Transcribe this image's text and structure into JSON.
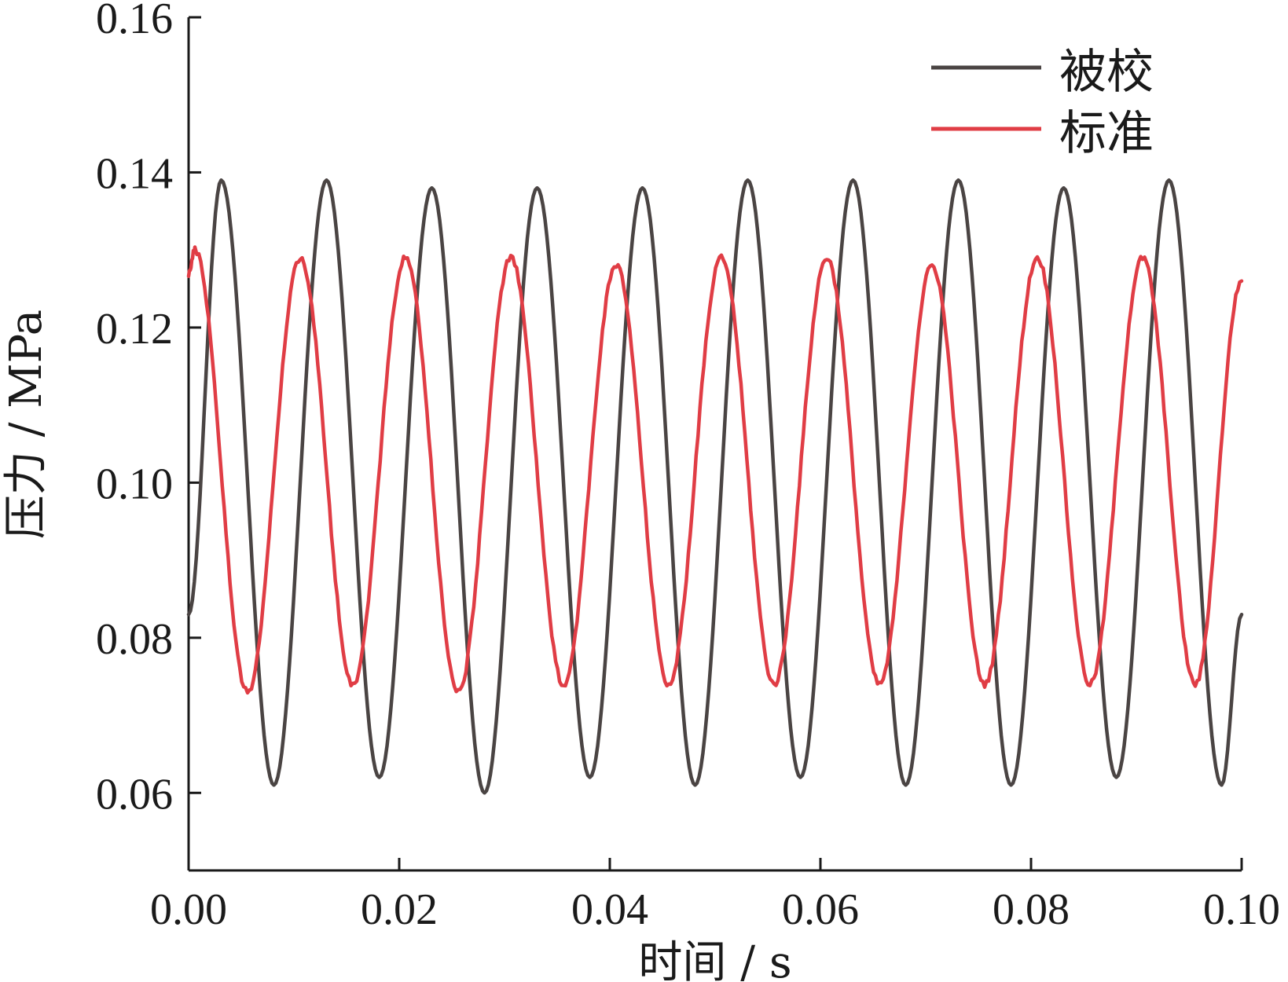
{
  "chart_data": {
    "type": "line",
    "xlabel": "时间 / s",
    "ylabel": "压力 / MPa",
    "xlim": [
      0.0,
      0.1
    ],
    "ylim": [
      0.05,
      0.16
    ],
    "x_ticks": [
      "0.00",
      "0.02",
      "0.04",
      "0.06",
      "0.08",
      "0.10"
    ],
    "x_tick_values": [
      0.0,
      0.02,
      0.04,
      0.06,
      0.08,
      0.1
    ],
    "y_ticks": [
      "0.06",
      "0.08",
      "0.10",
      "0.12",
      "0.14",
      "0.16"
    ],
    "y_tick_values": [
      0.06,
      0.08,
      0.1,
      0.12,
      0.14,
      0.16
    ],
    "grid": false,
    "legend_position": "top-right",
    "series": [
      {
        "name": "被校",
        "color": "#4a4443",
        "x": [
          0.0,
          0.0031,
          0.0081,
          0.0131,
          0.0181,
          0.0231,
          0.0281,
          0.0331,
          0.0381,
          0.0431,
          0.0481,
          0.0531,
          0.0581,
          0.0631,
          0.0681,
          0.0731,
          0.0781,
          0.0831,
          0.0881,
          0.0931,
          0.0981,
          0.1
        ],
        "y": [
          0.083,
          0.139,
          0.061,
          0.139,
          0.062,
          0.138,
          0.06,
          0.138,
          0.062,
          0.138,
          0.061,
          0.139,
          0.062,
          0.139,
          0.061,
          0.139,
          0.061,
          0.138,
          0.062,
          0.139,
          0.061,
          0.083
        ]
      },
      {
        "name": "标准",
        "color": "#e03d45",
        "x": [
          0.0,
          0.0006,
          0.0056,
          0.0106,
          0.0156,
          0.0206,
          0.0256,
          0.0306,
          0.0356,
          0.0406,
          0.0456,
          0.0506,
          0.0556,
          0.0606,
          0.0656,
          0.0706,
          0.0756,
          0.0806,
          0.0856,
          0.0906,
          0.0956,
          0.1
        ],
        "y": [
          0.127,
          0.13,
          0.073,
          0.129,
          0.074,
          0.129,
          0.073,
          0.129,
          0.074,
          0.128,
          0.074,
          0.129,
          0.074,
          0.129,
          0.074,
          0.128,
          0.074,
          0.129,
          0.074,
          0.129,
          0.074,
          0.126
        ]
      }
    ]
  }
}
